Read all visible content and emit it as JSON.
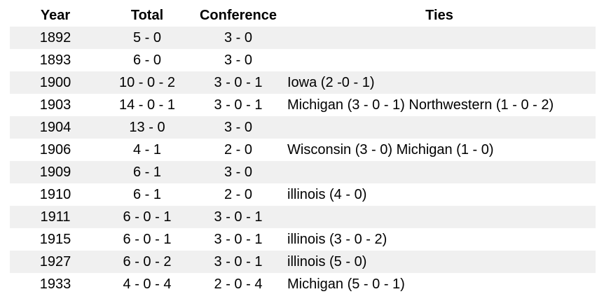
{
  "headers": {
    "year": "Year",
    "total": "Total",
    "conference": "Conference",
    "ties": "Ties"
  },
  "rows": [
    {
      "year": "1892",
      "total": "5 - 0",
      "conference": "3 - 0",
      "ties": ""
    },
    {
      "year": "1893",
      "total": "6 - 0",
      "conference": "3 - 0",
      "ties": ""
    },
    {
      "year": "1900",
      "total": "10 - 0 - 2",
      "conference": "3 - 0 - 1",
      "ties": "Iowa (2 -0 - 1)"
    },
    {
      "year": "1903",
      "total": "14 - 0 - 1",
      "conference": "3 - 0 - 1",
      "ties": "Michigan (3 - 0 - 1) Northwestern (1 - 0 - 2)"
    },
    {
      "year": "1904",
      "total": "13 - 0",
      "conference": "3 - 0",
      "ties": ""
    },
    {
      "year": "1906",
      "total": "4 - 1",
      "conference": "2 - 0",
      "ties": "Wisconsin (3 - 0) Michigan (1 - 0)"
    },
    {
      "year": "1909",
      "total": "6 - 1",
      "conference": "3 - 0",
      "ties": ""
    },
    {
      "year": "1910",
      "total": "6 - 1",
      "conference": "2 - 0",
      "ties": "illinois (4 - 0)"
    },
    {
      "year": "1911",
      "total": "6 - 0 - 1",
      "conference": "3 - 0 - 1",
      "ties": ""
    },
    {
      "year": "1915",
      "total": "6 - 0 - 1",
      "conference": "3 - 0 - 1",
      "ties": "illinois (3 - 0 - 2)"
    },
    {
      "year": "1927",
      "total": "6 - 0 - 2",
      "conference": "3 - 0 - 1",
      "ties": "illinois (5 - 0)"
    },
    {
      "year": "1933",
      "total": "4 - 0 - 4",
      "conference": "2 - 0 - 4",
      "ties": "Michigan (5 - 0 - 1)"
    }
  ],
  "colors": {
    "row_shade": "#f0f0f0",
    "text": "#000000",
    "background": "#ffffff"
  }
}
